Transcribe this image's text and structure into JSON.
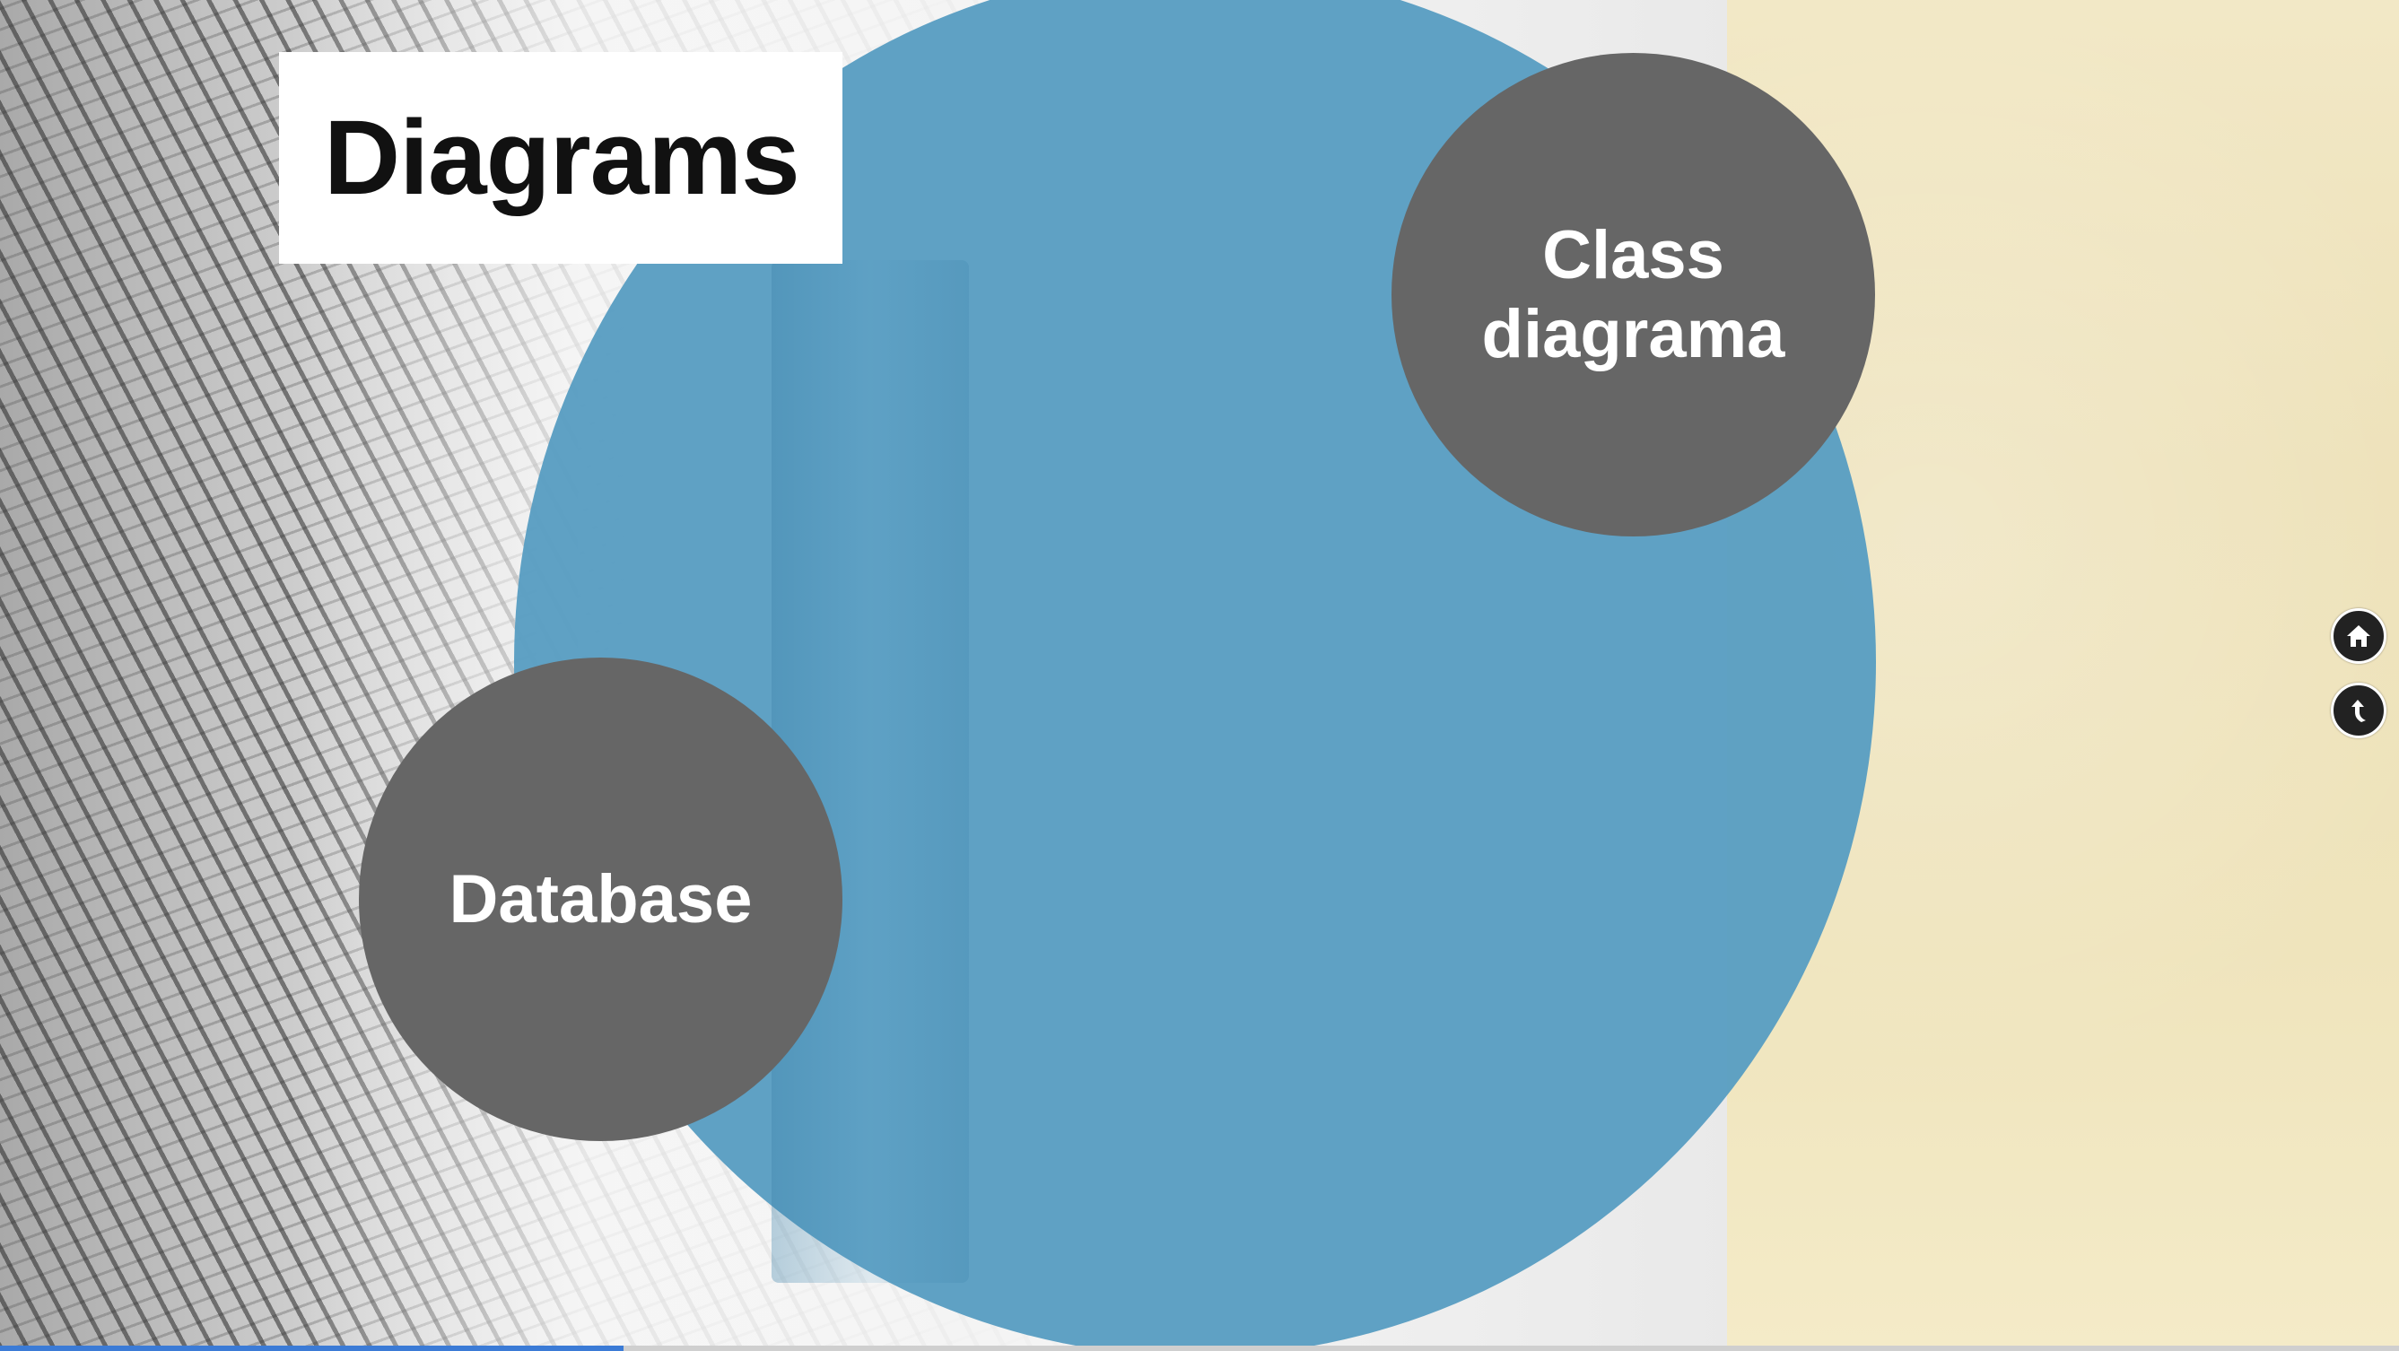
{
  "slide": {
    "title": "Diagrams"
  },
  "nodes": {
    "class_diagram": {
      "line1": "Class",
      "line2": "diagrama"
    },
    "database": {
      "label": "Database"
    }
  },
  "navigation": {
    "home_icon": "home-icon",
    "back_icon": "back-arrow-icon"
  },
  "progress": {
    "fraction": 0.26
  },
  "colors": {
    "big_circle": "#5a9ec2",
    "node_fill": "#666666",
    "title_card": "#ffffff",
    "progress": "#3b7bd6"
  }
}
